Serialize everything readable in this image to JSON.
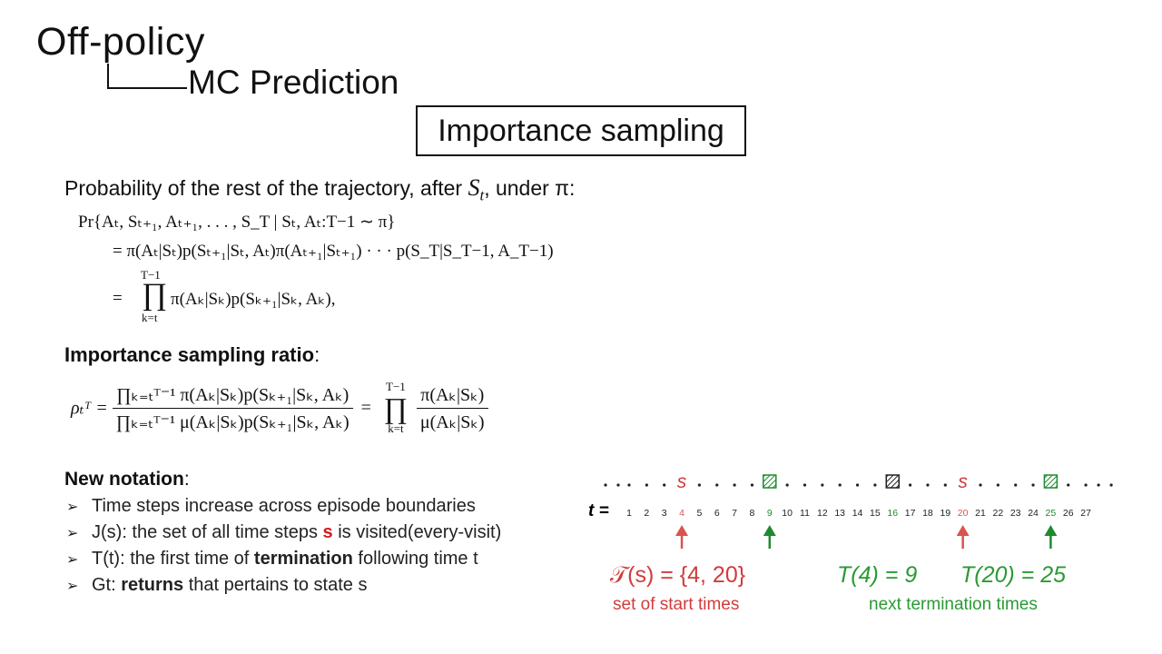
{
  "header": {
    "title": "Off-policy",
    "subtitle": "MC Prediction",
    "section": "Importance sampling"
  },
  "probability": {
    "intro_pre": "Probability of the rest of the trajectory, after ",
    "intro_var": "S",
    "intro_var_sub": "t",
    "intro_post": ", under π:",
    "eq_line1": "Pr{Aₜ, Sₜ₊₁, Aₜ₊₁, . . . , S_T | Sₜ, Aₜ:T−1 ∼ π}",
    "eq_line2": "=  π(Aₜ|Sₜ)p(Sₜ₊₁|Sₜ, Aₜ)π(Aₜ₊₁|Sₜ₊₁) · · · p(S_T|S_T−1, A_T−1)",
    "eq_line3_prefix": "=",
    "eq_line3_upper": "T−1",
    "eq_line3_lower": "k=t",
    "eq_line3_body": "π(Aₖ|Sₖ)p(Sₖ₊₁|Sₖ, Aₖ),"
  },
  "ratio": {
    "heading_bold": "Importance sampling ratio",
    "heading_colon": ":",
    "lhs": "ρₜᵀ  =",
    "frac1_num": "∏ₖ₌ₜᵀ⁻¹ π(Aₖ|Sₖ)p(Sₖ₊₁|Sₖ, Aₖ)",
    "frac1_den": "∏ₖ₌ₜᵀ⁻¹ μ(Aₖ|Sₖ)p(Sₖ₊₁|Sₖ, Aₖ)",
    "equals": "=",
    "prod_upper": "T−1",
    "prod_lower": "k=t",
    "frac2_num": "π(Aₖ|Sₖ)",
    "frac2_den": "μ(Aₖ|Sₖ)"
  },
  "notation": {
    "heading_bold": "New notation",
    "heading_colon": ":",
    "bullet_glyph": "➢",
    "items": [
      {
        "pre": "Time steps increase across episode boundaries",
        "emph": "",
        "post": ""
      },
      {
        "pre": "J(s): the set of all time steps ",
        "emph": "s",
        "post": " is visited(every-visit)"
      },
      {
        "pre": "T(t): the first time of ",
        "emph": "termination",
        "post": " following time t"
      },
      {
        "pre": "Gt: ",
        "emph": "returns",
        "post": " that pertains to state s"
      }
    ]
  },
  "diagram": {
    "timeline_label": "t =",
    "steps": [
      "1",
      "2",
      "3",
      "4",
      "5",
      "6",
      "7",
      "8",
      "9",
      "10",
      "11",
      "12",
      "13",
      "14",
      "15",
      "16",
      "17",
      "18",
      "19",
      "20",
      "21",
      "22",
      "23",
      "24",
      "25",
      "26",
      "27"
    ],
    "start_label": "s",
    "start_steps": [
      "4",
      "20"
    ],
    "termination_steps": [
      "9",
      "16",
      "25"
    ],
    "start_set": "𝒯(s) = {4, 20}",
    "start_caption": "set of start times",
    "term_eq1": "T(4) = 9",
    "term_eq2": "T(20) = 25",
    "term_caption": "next termination times",
    "colors": {
      "start": "#d9534f",
      "termination": "#1e8a2e",
      "start_text": "#d23b3b",
      "term_text": "#2a9a34"
    }
  }
}
